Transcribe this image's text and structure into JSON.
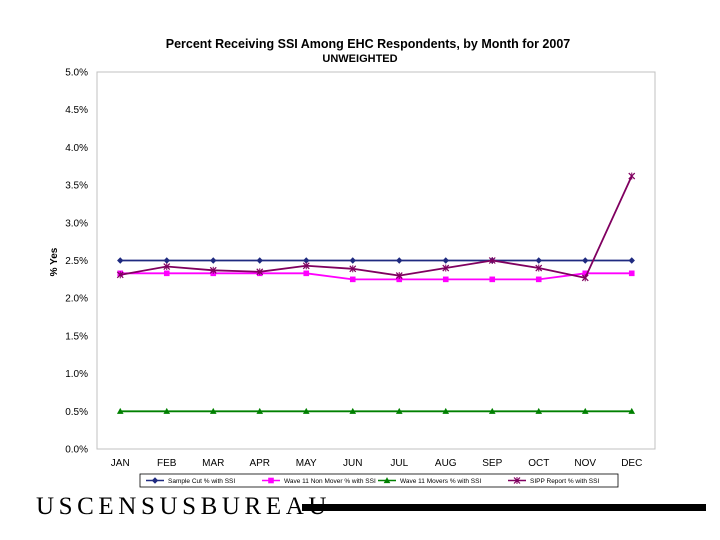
{
  "chart_data": {
    "type": "line",
    "title": "Percent Receiving SSI Among EHC Respondents, by Month for 2007",
    "subtitle": "UNWEIGHTED",
    "xlabel": "",
    "ylabel": "% Yes",
    "ylim": [
      0,
      5
    ],
    "yticks": [
      "0.0%",
      "0.5%",
      "1.0%",
      "1.5%",
      "2.0%",
      "2.5%",
      "3.0%",
      "3.5%",
      "4.0%",
      "4.5%",
      "5.0%"
    ],
    "grid": false,
    "legend": "bottom",
    "categories": [
      "JAN",
      "FEB",
      "MAR",
      "APR",
      "MAY",
      "JUN",
      "JUL",
      "AUG",
      "SEP",
      "OCT",
      "NOV",
      "DEC"
    ],
    "series": [
      {
        "name": "Sample Cut % with SSI",
        "color": "#1f2a80",
        "marker": "diamond",
        "values": [
          2.5,
          2.5,
          2.5,
          2.5,
          2.5,
          2.5,
          2.5,
          2.5,
          2.5,
          2.5,
          2.5,
          2.5
        ]
      },
      {
        "name": "Wave 11 Non Mover % with SSI",
        "color": "#ff00ff",
        "marker": "square",
        "values": [
          2.33,
          2.33,
          2.33,
          2.33,
          2.33,
          2.25,
          2.25,
          2.25,
          2.25,
          2.25,
          2.33,
          2.33
        ]
      },
      {
        "name": "Wave 11 Movers % with SSI",
        "color": "#008000",
        "marker": "triangle",
        "values": [
          0.5,
          0.5,
          0.5,
          0.5,
          0.5,
          0.5,
          0.5,
          0.5,
          0.5,
          0.5,
          0.5,
          0.5
        ]
      },
      {
        "name": "SIPP Report % with SSI",
        "color": "#800060",
        "marker": "x",
        "values": [
          2.31,
          2.42,
          2.37,
          2.35,
          2.43,
          2.39,
          2.3,
          2.4,
          2.5,
          2.4,
          2.27,
          3.62
        ]
      }
    ]
  },
  "footer": {
    "logo_text": "USCENSUSBUREAU"
  }
}
